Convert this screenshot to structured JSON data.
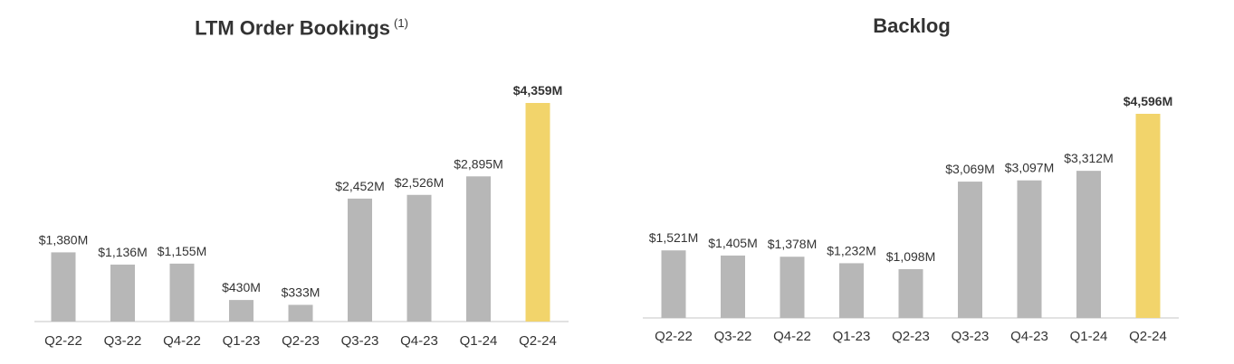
{
  "chart_data": [
    {
      "type": "bar",
      "title": "LTM Order Bookings",
      "title_footnote": "(1)",
      "categories": [
        "Q2-22",
        "Q3-22",
        "Q4-22",
        "Q1-23",
        "Q2-23",
        "Q3-23",
        "Q4-23",
        "Q1-24",
        "Q2-24"
      ],
      "values": [
        1380,
        1136,
        1155,
        430,
        333,
        2452,
        2526,
        2895,
        4359
      ],
      "labels": [
        "$1,380M",
        "$1,136M",
        "$1,155M",
        "$430M",
        "$333M",
        "$2,452M",
        "$2,526M",
        "$2,895M",
        "$4,359M"
      ],
      "unit": "$M",
      "highlight_index": 8,
      "colors": {
        "bar": "#b7b7b7",
        "highlight": "#f2d46b",
        "axis": "#d9d9d9"
      },
      "xlabel": "",
      "ylabel": "",
      "ylim": [
        0,
        4359
      ],
      "grid": false,
      "legend": "none"
    },
    {
      "type": "bar",
      "title": "Backlog",
      "categories": [
        "Q2-22",
        "Q3-22",
        "Q4-22",
        "Q1-23",
        "Q2-23",
        "Q3-23",
        "Q4-23",
        "Q1-24",
        "Q2-24"
      ],
      "values": [
        1521,
        1405,
        1378,
        1232,
        1098,
        3069,
        3097,
        3312,
        4596
      ],
      "labels": [
        "$1,521M",
        "$1,405M",
        "$1,378M",
        "$1,232M",
        "$1,098M",
        "$3,069M",
        "$3,097M",
        "$3,312M",
        "$4,596M"
      ],
      "unit": "$M",
      "highlight_index": 8,
      "colors": {
        "bar": "#b7b7b7",
        "highlight": "#f2d46b",
        "axis": "#d9d9d9"
      },
      "xlabel": "",
      "ylabel": "",
      "ylim": [
        0,
        4596
      ],
      "grid": false,
      "legend": "none"
    }
  ]
}
